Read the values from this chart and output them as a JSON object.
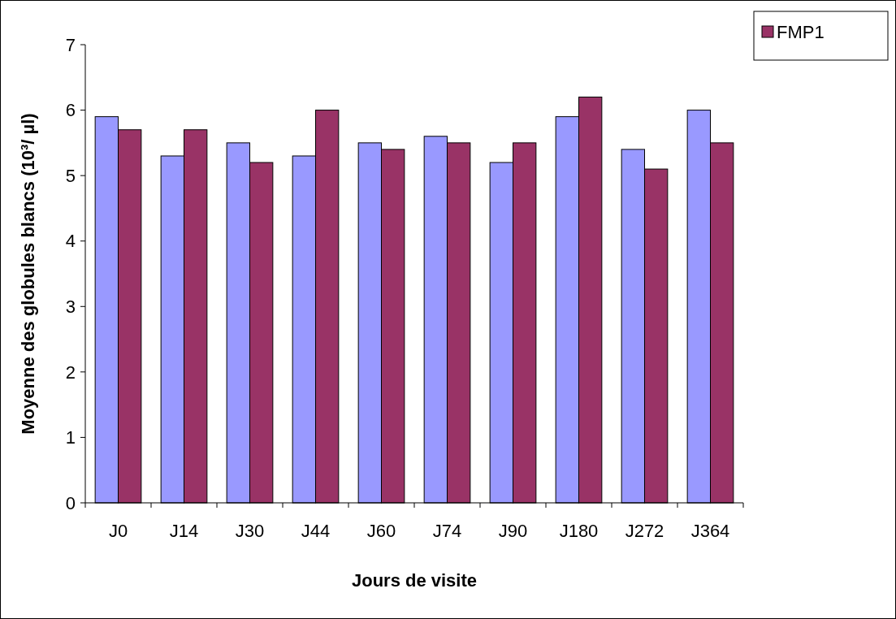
{
  "chart_data": {
    "type": "bar",
    "xlabel": "Jours de visite",
    "ylabel": "Moyenne des globules blancs (10³/ µl)",
    "categories": [
      "J0",
      "J14",
      "J30",
      "J44",
      "J60",
      "J74",
      "J90",
      "J180",
      "J272",
      "J364"
    ],
    "series": [
      {
        "color": "#9999ff",
        "values": [
          5.9,
          5.3,
          5.5,
          5.3,
          5.5,
          5.6,
          5.2,
          5.9,
          5.4,
          6.0
        ]
      },
      {
        "name": "FMP1",
        "color": "#993366",
        "values": [
          5.7,
          5.7,
          5.2,
          6.0,
          5.4,
          5.5,
          5.5,
          6.2,
          5.1,
          5.5
        ]
      }
    ],
    "ylim": [
      0,
      7
    ],
    "yticks": [
      0,
      1,
      2,
      3,
      4,
      5,
      6,
      7
    ],
    "grid": false,
    "legend": "top right"
  }
}
